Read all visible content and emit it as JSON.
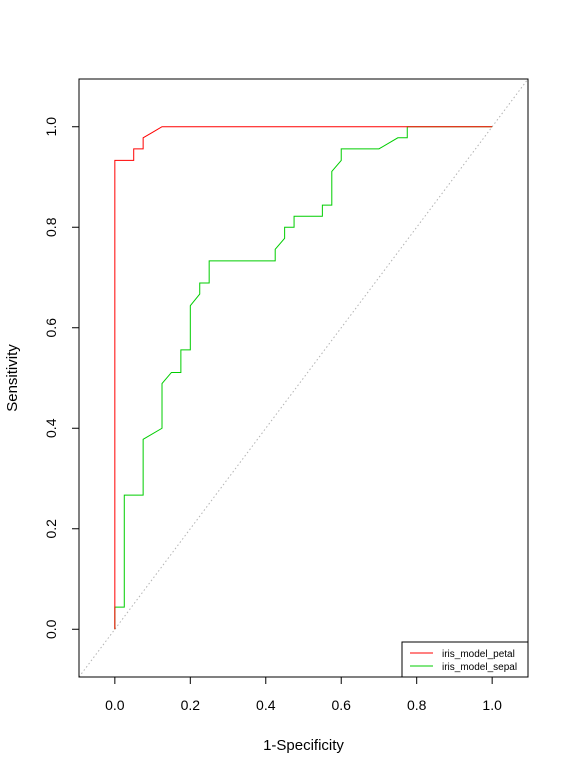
{
  "chart_data": {
    "type": "line",
    "title": "",
    "xlabel": "1-Specificity",
    "ylabel": "Sensitivity",
    "xlim": [
      -0.095,
      1.095
    ],
    "ylim": [
      -0.095,
      1.095
    ],
    "xticks": [
      "0.0",
      "0.2",
      "0.4",
      "0.6",
      "0.8",
      "1.0"
    ],
    "yticks": [
      "0.0",
      "0.2",
      "0.4",
      "0.6",
      "0.8",
      "1.0"
    ],
    "grid": false,
    "legend_position": "bottom-right",
    "reference_line": {
      "style": "dotted",
      "color": "#b3b3b3",
      "from": [
        -0.095,
        -0.095
      ],
      "to": [
        1.095,
        1.095
      ]
    },
    "series": [
      {
        "name": "iris_model_petal",
        "color": "#ff0000",
        "x": [
          0,
          0,
          0.05,
          0.05,
          0.075,
          0.075,
          0.1,
          0.125,
          0.775,
          1.0
        ],
        "y": [
          0,
          0.933,
          0.933,
          0.956,
          0.956,
          0.978,
          0.989,
          1.0,
          1.0,
          1.0
        ]
      },
      {
        "name": "iris_model_sepal",
        "color": "#00cd00",
        "x": [
          0,
          0,
          0.025,
          0.025,
          0.075,
          0.075,
          0.125,
          0.125,
          0.15,
          0.175,
          0.175,
          0.2,
          0.2,
          0.225,
          0.225,
          0.25,
          0.25,
          0.425,
          0.425,
          0.45,
          0.45,
          0.475,
          0.475,
          0.55,
          0.55,
          0.575,
          0.575,
          0.6,
          0.6,
          0.7,
          0.75,
          0.775,
          0.775,
          1.0
        ],
        "y": [
          0,
          0.044,
          0.044,
          0.267,
          0.267,
          0.378,
          0.4,
          0.489,
          0.511,
          0.511,
          0.556,
          0.556,
          0.644,
          0.667,
          0.689,
          0.689,
          0.733,
          0.733,
          0.756,
          0.778,
          0.8,
          0.8,
          0.822,
          0.822,
          0.844,
          0.844,
          0.911,
          0.933,
          0.956,
          0.956,
          0.978,
          0.978,
          1.0,
          1.0
        ]
      }
    ]
  }
}
